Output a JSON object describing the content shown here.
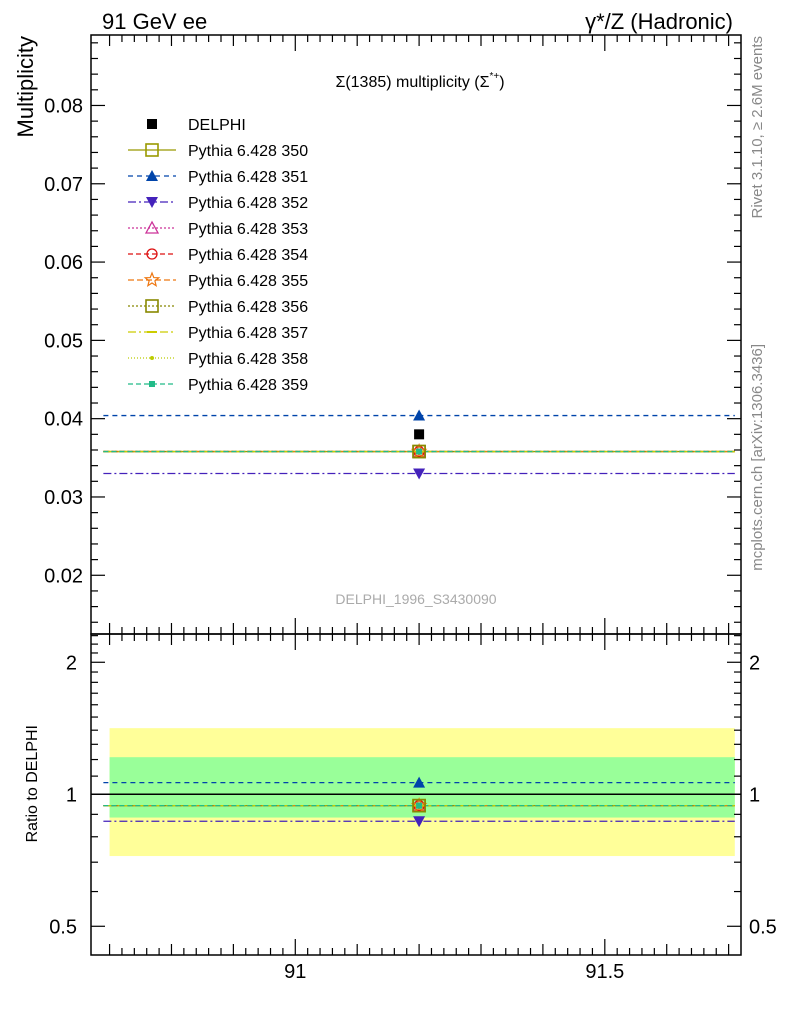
{
  "header": {
    "left": "91 GeV ee",
    "right": "γ*/Z (Hadronic)"
  },
  "side_notes": {
    "top": "Rivet 3.1.10, ≥ 2.6M events",
    "bottom": "mcplots.cern.ch [arXiv:1306.3436]"
  },
  "main_plot": {
    "title_main": "Σ(1385) multiplicity (Σ",
    "title_sup": "*+",
    "title_end": ")",
    "ylabel": "Multiplicity",
    "analysis_tag": "DELPHI_1996_S3430090"
  },
  "ratio_plot": {
    "ylabel": "Ratio to DELPHI"
  },
  "colors": {
    "band_outer": "#ffff99",
    "band_inner": "#99ff99",
    "data": "#000000"
  },
  "chart_data": [
    {
      "type": "line",
      "title": "Σ(1385) multiplicity (Σ*+)",
      "ylabel": "Multiplicity",
      "xlim": [
        90.67,
        91.72
      ],
      "ylim": [
        0.0125,
        0.089
      ],
      "y_ticks": [
        "0.02",
        "0.03",
        "0.04",
        "0.05",
        "0.06",
        "0.07",
        "0.08"
      ],
      "y_tick_values": [
        0.02,
        0.03,
        0.04,
        0.05,
        0.06,
        0.07,
        0.08
      ],
      "x_point": 91.2,
      "x_range": [
        90.69,
        91.71
      ],
      "legend_position": "top-left",
      "data": {
        "name": "DELPHI",
        "x": 91.2,
        "y": 0.038,
        "color": "#000000",
        "marker": "square-filled"
      },
      "series": [
        {
          "name": "Pythia 6.428 350",
          "y": 0.0358,
          "color": "#999900",
          "dash": "solid",
          "marker": "square-open"
        },
        {
          "name": "Pythia 6.428 351",
          "y": 0.0404,
          "color": "#0044aa",
          "dash": "5,4",
          "marker": "triangle-up-filled"
        },
        {
          "name": "Pythia 6.428 352",
          "y": 0.033,
          "color": "#4422bb",
          "dash": "8,3,2,3",
          "marker": "triangle-down-filled"
        },
        {
          "name": "Pythia 6.428 353",
          "y": 0.0358,
          "color": "#cc3399",
          "dash": "2,2",
          "marker": "triangle-up-open"
        },
        {
          "name": "Pythia 6.428 354",
          "y": 0.0358,
          "color": "#dd1111",
          "dash": "5,3",
          "marker": "circle-open"
        },
        {
          "name": "Pythia 6.428 355",
          "y": 0.0358,
          "color": "#ee7711",
          "dash": "6,3",
          "marker": "star-open"
        },
        {
          "name": "Pythia 6.428 356",
          "y": 0.0358,
          "color": "#888800",
          "dash": "2,2",
          "marker": "square-open"
        },
        {
          "name": "Pythia 6.428 357",
          "y": 0.0358,
          "color": "#cccc00",
          "dash": "8,3,2,3",
          "marker": "dash-mark"
        },
        {
          "name": "Pythia 6.428 358",
          "y": 0.0358,
          "color": "#bbcc00",
          "dash": "1,2",
          "marker": "dot"
        },
        {
          "name": "Pythia 6.428 359",
          "y": 0.0358,
          "color": "#22bb88",
          "dash": "5,3",
          "marker": "square-small"
        }
      ]
    },
    {
      "type": "line",
      "ylabel": "Ratio to DELPHI",
      "xlim": [
        90.67,
        91.72
      ],
      "ylim": [
        0.43,
        2.32
      ],
      "y_ticks": [
        "0.5",
        "1",
        "2"
      ],
      "y_tick_values": [
        0.5,
        1,
        2
      ],
      "x_ticks": [
        "91",
        "91.5"
      ],
      "x_tick_values": [
        91,
        91.5
      ],
      "band_inner": [
        0.885,
        1.215
      ],
      "band_outer": [
        0.723,
        1.415
      ],
      "series": [
        {
          "name": "Pythia 6.428 350",
          "y": 0.942
        },
        {
          "name": "Pythia 6.428 351",
          "y": 1.063
        },
        {
          "name": "Pythia 6.428 352",
          "y": 0.868
        },
        {
          "name": "Pythia 6.428 353",
          "y": 0.942
        },
        {
          "name": "Pythia 6.428 354",
          "y": 0.942
        },
        {
          "name": "Pythia 6.428 355",
          "y": 0.942
        },
        {
          "name": "Pythia 6.428 356",
          "y": 0.942
        },
        {
          "name": "Pythia 6.428 357",
          "y": 0.942
        },
        {
          "name": "Pythia 6.428 358",
          "y": 0.942
        },
        {
          "name": "Pythia 6.428 359",
          "y": 0.942
        }
      ]
    }
  ]
}
